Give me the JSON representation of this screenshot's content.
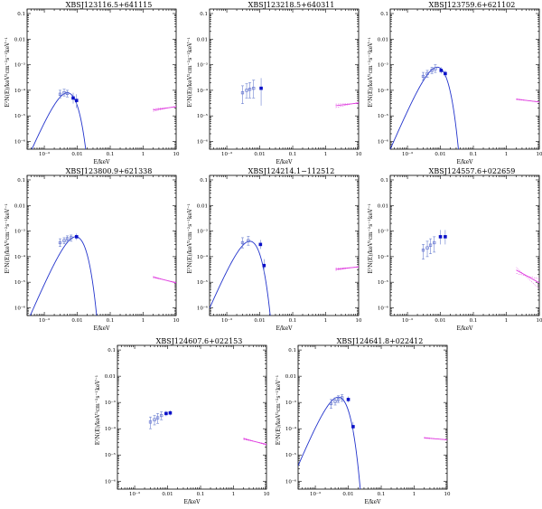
{
  "figure": {
    "xlabel": "E/keV",
    "ylabel": "E²N(E)/keV²cm⁻²s⁻¹keV⁻¹",
    "x_ticks": [
      {
        "v": 0.001,
        "t": "10⁻³"
      },
      {
        "v": 0.01,
        "t": "0.01"
      },
      {
        "v": 0.1,
        "t": "0.1"
      },
      {
        "v": 1,
        "t": "1"
      },
      {
        "v": 10,
        "t": "10"
      }
    ],
    "y_ticks": [
      {
        "v": 0.1,
        "t": "0.1"
      },
      {
        "v": 0.01,
        "t": "0.01"
      },
      {
        "v": 0.001,
        "t": "10⁻³"
      },
      {
        "v": 0.0001,
        "t": "10⁻⁴"
      },
      {
        "v": 1e-05,
        "t": "10⁻⁵"
      },
      {
        "v": 1e-06,
        "t": "10⁻⁶"
      }
    ]
  },
  "colors": {
    "model": "#2233cc",
    "open_marker": "#5566cc",
    "filled_marker": "#0a10c8",
    "xray": "#e040e0"
  },
  "chart_data": [
    {
      "type": "scatter",
      "title": "XBSJ123116.5+641115",
      "xscale": "log",
      "yscale": "log",
      "xlim": [
        0.0003,
        10
      ],
      "ylim": [
        5e-07,
        0.15
      ],
      "model": {
        "norm": 8e-05,
        "peak_E": 0.005
      },
      "open_points": [
        {
          "x": 0.003,
          "y": 7e-05,
          "lo": 5e-05,
          "hi": 0.0001
        },
        {
          "x": 0.004,
          "y": 8e-05,
          "lo": 6e-05,
          "hi": 0.00011
        },
        {
          "x": 0.005,
          "y": 7.5e-05,
          "lo": 5.5e-05,
          "hi": 0.0001
        }
      ],
      "filled_points": [
        {
          "x": 0.0075,
          "y": 5e-05,
          "lo": 3e-05,
          "hi": 8e-05
        },
        {
          "x": 0.0095,
          "y": 4e-05,
          "lo": 2e-05,
          "hi": 7e-05
        }
      ],
      "xray": {
        "x": [
          2,
          10
        ],
        "y": [
          1.7e-05,
          2.3e-05
        ],
        "band": 2e-06
      }
    },
    {
      "type": "scatter",
      "title": "XBSJ123218.5+640311",
      "xscale": "log",
      "yscale": "log",
      "xlim": [
        0.0003,
        10
      ],
      "ylim": [
        5e-07,
        0.15
      ],
      "model": {
        "norm": 0.00013,
        "peak_E": 0.009
      },
      "open_points": [
        {
          "x": 0.003,
          "y": 8e-05,
          "lo": 3e-05,
          "hi": 0.00015
        },
        {
          "x": 0.004,
          "y": 0.0001,
          "lo": 5e-05,
          "hi": 0.00018
        },
        {
          "x": 0.005,
          "y": 0.00011,
          "lo": 5e-05,
          "hi": 0.0002
        },
        {
          "x": 0.0065,
          "y": 0.00012,
          "lo": 5e-05,
          "hi": 0.00025
        }
      ],
      "filled_points": [
        {
          "x": 0.011,
          "y": 0.00012,
          "lo": 2.5e-05,
          "hi": 0.0003
        }
      ],
      "xray": {
        "x": [
          2,
          10
        ],
        "y": [
          2.5e-05,
          3.2e-05
        ],
        "band": 4e-06
      }
    },
    {
      "type": "scatter",
      "title": "XBSJ123759.6+621102",
      "xscale": "log",
      "yscale": "log",
      "xlim": [
        0.0003,
        10
      ],
      "ylim": [
        5e-07,
        0.15
      ],
      "model": {
        "norm": 0.0008,
        "peak_E": 0.008
      },
      "open_points": [
        {
          "x": 0.003,
          "y": 0.00035,
          "lo": 0.00025,
          "hi": 0.0005
        },
        {
          "x": 0.004,
          "y": 0.00045,
          "lo": 0.00032,
          "hi": 0.0006
        },
        {
          "x": 0.0055,
          "y": 0.0006,
          "lo": 0.00045,
          "hi": 0.0008
        },
        {
          "x": 0.007,
          "y": 0.0007,
          "lo": 0.0005,
          "hi": 0.001
        }
      ],
      "filled_points": [
        {
          "x": 0.0105,
          "y": 0.0006,
          "lo": 0.00045,
          "hi": 0.0008
        },
        {
          "x": 0.014,
          "y": 0.00045,
          "lo": 0.00033,
          "hi": 0.0006
        }
      ],
      "xray": {
        "x": [
          2,
          10
        ],
        "y": [
          4.5e-05,
          3.5e-05
        ],
        "band": 2e-06
      }
    },
    {
      "type": "scatter",
      "title": "XBSJ123800.9+621338",
      "xscale": "log",
      "yscale": "log",
      "xlim": [
        0.0003,
        10
      ],
      "ylim": [
        5e-07,
        0.15
      ],
      "model": {
        "norm": 0.0006,
        "peak_E": 0.009
      },
      "open_points": [
        {
          "x": 0.003,
          "y": 0.00035,
          "lo": 0.00025,
          "hi": 0.0005
        },
        {
          "x": 0.004,
          "y": 0.00042,
          "lo": 0.00032,
          "hi": 0.00055
        },
        {
          "x": 0.005,
          "y": 0.0005,
          "lo": 0.00038,
          "hi": 0.00065
        },
        {
          "x": 0.0065,
          "y": 0.00055,
          "lo": 0.0004,
          "hi": 0.0007
        }
      ],
      "filled_points": [
        {
          "x": 0.0095,
          "y": 0.0006,
          "lo": 0.00045,
          "hi": 0.0008
        }
      ],
      "xray": {
        "x": [
          2,
          10
        ],
        "y": [
          1.6e-05,
          9.5e-06
        ],
        "band": 1e-06
      }
    },
    {
      "type": "scatter",
      "title": "XBSJ124214.1−112512",
      "xscale": "log",
      "yscale": "log",
      "xlim": [
        0.0003,
        10
      ],
      "ylim": [
        5e-07,
        0.15
      ],
      "model": {
        "norm": 0.0004,
        "peak_E": 0.005
      },
      "open_points": [
        {
          "x": 0.003,
          "y": 0.00035,
          "lo": 0.00022,
          "hi": 0.00055
        },
        {
          "x": 0.0045,
          "y": 0.00042,
          "lo": 0.00028,
          "hi": 0.00062
        }
      ],
      "filled_points": [
        {
          "x": 0.0105,
          "y": 0.0003,
          "lo": 0.0002,
          "hi": 0.00045
        },
        {
          "x": 0.0135,
          "y": 4.5e-05,
          "lo": 2.2e-05,
          "hi": 8e-05
        }
      ],
      "xray": {
        "x": [
          2,
          10
        ],
        "y": [
          3.2e-05,
          4e-05
        ],
        "band": 3e-06
      }
    },
    {
      "type": "scatter",
      "title": "XBSJ124557.6+022659",
      "xscale": "log",
      "yscale": "log",
      "xlim": [
        0.0003,
        10
      ],
      "ylim": [
        5e-07,
        0.15
      ],
      "model": {
        "norm": 0.0007,
        "peak_E": 0.02
      },
      "open_points": [
        {
          "x": 0.003,
          "y": 0.00018,
          "lo": 8e-05,
          "hi": 0.0003
        },
        {
          "x": 0.004,
          "y": 0.00022,
          "lo": 0.0001,
          "hi": 0.0004
        },
        {
          "x": 0.005,
          "y": 0.00028,
          "lo": 0.00013,
          "hi": 0.0005
        },
        {
          "x": 0.0065,
          "y": 0.00035,
          "lo": 0.00015,
          "hi": 0.0006
        }
      ],
      "filled_points": [
        {
          "x": 0.01,
          "y": 0.0006,
          "lo": 0.0003,
          "hi": 0.0011
        },
        {
          "x": 0.014,
          "y": 0.0006,
          "lo": 0.0003,
          "hi": 0.0011
        }
      ],
      "xray": {
        "x": [
          2,
          10
        ],
        "y": [
          3e-05,
          9.5e-06
        ],
        "band": 8e-06
      }
    },
    {
      "type": "scatter",
      "title": "XBSJ124607.6+022153",
      "xscale": "log",
      "yscale": "log",
      "xlim": [
        0.0003,
        10
      ],
      "ylim": [
        5e-07,
        0.15
      ],
      "model": {
        "norm": 0.00045,
        "peak_E": 0.011
      },
      "open_points": [
        {
          "x": 0.003,
          "y": 0.00018,
          "lo": 0.0001,
          "hi": 0.00028
        },
        {
          "x": 0.004,
          "y": 0.00022,
          "lo": 0.00014,
          "hi": 0.00032
        },
        {
          "x": 0.005,
          "y": 0.00026,
          "lo": 0.00016,
          "hi": 0.00038
        },
        {
          "x": 0.0065,
          "y": 0.00032,
          "lo": 0.00022,
          "hi": 0.00044
        }
      ],
      "filled_points": [
        {
          "x": 0.009,
          "y": 0.00038,
          "lo": 0.0003,
          "hi": 0.00048
        },
        {
          "x": 0.012,
          "y": 0.0004,
          "lo": 0.00032,
          "hi": 0.0005
        }
      ],
      "xray": {
        "x": [
          2,
          10
        ],
        "y": [
          4.2e-05,
          2.5e-05
        ],
        "band": 3e-06
      }
    },
    {
      "type": "scatter",
      "title": "XBSJ124641.8+022412",
      "xscale": "log",
      "yscale": "log",
      "xlim": [
        0.0003,
        10
      ],
      "ylim": [
        5e-07,
        0.15
      ],
      "model": {
        "norm": 0.0016,
        "peak_E": 0.005
      },
      "open_points": [
        {
          "x": 0.003,
          "y": 0.0009,
          "lo": 0.0006,
          "hi": 0.0013
        },
        {
          "x": 0.004,
          "y": 0.0011,
          "lo": 0.0008,
          "hi": 0.0015
        },
        {
          "x": 0.005,
          "y": 0.0013,
          "lo": 0.001,
          "hi": 0.0018
        },
        {
          "x": 0.0065,
          "y": 0.0015,
          "lo": 0.0011,
          "hi": 0.002
        }
      ],
      "filled_points": [
        {
          "x": 0.01,
          "y": 0.0013,
          "lo": 0.001,
          "hi": 0.0017
        },
        {
          "x": 0.014,
          "y": 0.00012,
          "lo": 8e-05,
          "hi": 0.00018
        }
      ],
      "xray": {
        "x": [
          2,
          10
        ],
        "y": [
          4.5e-05,
          3.8e-05
        ],
        "band": 2e-06
      }
    }
  ]
}
